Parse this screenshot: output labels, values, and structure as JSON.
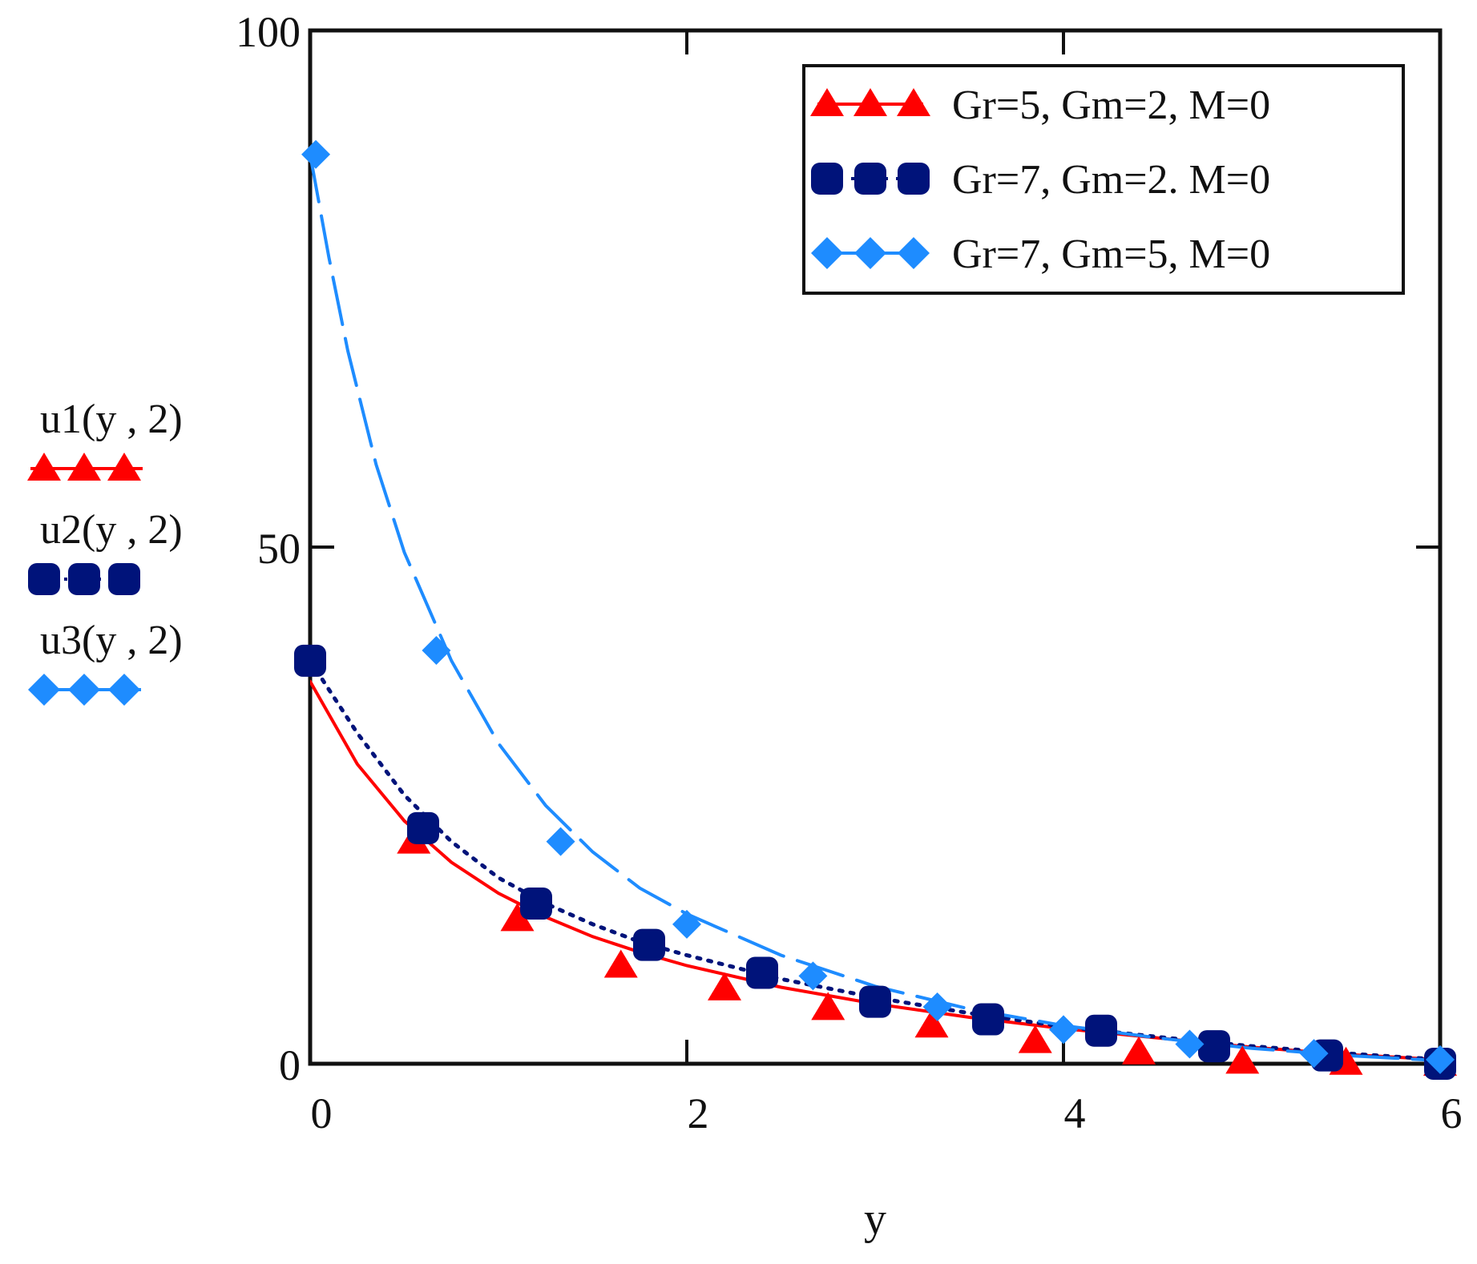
{
  "chart_data": {
    "type": "line",
    "xlabel": "y",
    "ylabel": "",
    "xlim": [
      0,
      6
    ],
    "ylim": [
      0,
      100
    ],
    "x_ticks": [
      0,
      2,
      4,
      6
    ],
    "y_ticks": [
      0,
      50,
      100
    ],
    "grid": false,
    "legend_position": "top-right",
    "y_axis_series_labels": [
      "u1(y , 2)",
      "u2(y , 2)",
      "u3(y , 2)"
    ],
    "series": [
      {
        "name": "Gr=5, Gm=2, M=0",
        "function_label": "u1(y , 2)",
        "color": "#ff0000",
        "marker": "triangle",
        "line_style": "solid",
        "x": [
          0,
          0.25,
          0.5,
          0.75,
          1.0,
          1.25,
          1.5,
          1.75,
          2.0,
          2.5,
          3.0,
          3.5,
          4.0,
          4.5,
          5.0,
          5.5,
          6.0
        ],
        "y": [
          37,
          29,
          23.5,
          19.5,
          16.5,
          14.2,
          12.3,
          10.8,
          9.5,
          7.4,
          5.8,
          4.5,
          3.4,
          2.5,
          1.6,
          0.9,
          0.4
        ],
        "marker_x": [
          0.55,
          1.1,
          1.65,
          2.2,
          2.75,
          3.3,
          3.85,
          4.4,
          4.95,
          5.5,
          6.0
        ],
        "marker_y": [
          21.5,
          14,
          9.5,
          7.3,
          5.4,
          3.7,
          2.2,
          1.1,
          0.2,
          0.1,
          0
        ]
      },
      {
        "name": "Gr=7, Gm=2. M=0",
        "function_label": "u2(y , 2)",
        "color": "#00137a",
        "marker": "rounded-square",
        "line_style": "dotted",
        "x": [
          0,
          0.25,
          0.5,
          0.75,
          1.0,
          1.25,
          1.5,
          1.75,
          2.0,
          2.5,
          3.0,
          3.5,
          4.0,
          4.5,
          5.0,
          5.5,
          6.0
        ],
        "y": [
          39,
          32,
          26,
          21.5,
          18,
          15.5,
          13.5,
          11.8,
          10.5,
          8.2,
          6.4,
          4.9,
          3.6,
          2.6,
          1.7,
          1.0,
          0.4
        ],
        "marker_x": [
          0,
          0.6,
          1.2,
          1.8,
          2.4,
          3.0,
          3.6,
          4.2,
          4.8,
          5.4,
          6.0
        ],
        "marker_y": [
          39,
          22.8,
          15.5,
          11.5,
          8.8,
          6,
          4.3,
          3.2,
          1.7,
          0.8,
          0
        ]
      },
      {
        "name": "Gr=7, Gm=5, M=0",
        "function_label": "u3(y , 2)",
        "color": "#1e8cff",
        "marker": "diamond",
        "line_style": "dashed",
        "x": [
          0,
          0.1,
          0.2,
          0.35,
          0.5,
          0.75,
          1.0,
          1.25,
          1.5,
          1.75,
          2.0,
          2.5,
          3.0,
          3.5,
          4.0,
          4.5,
          5.0,
          5.5,
          6.0
        ],
        "y": [
          88,
          78,
          69,
          58,
          49.5,
          39,
          31,
          25,
          20.5,
          17,
          14.5,
          10.5,
          7.5,
          5.3,
          3.7,
          2.5,
          1.5,
          0.8,
          0.3
        ],
        "marker_x": [
          0.03,
          0.67,
          1.33,
          2.0,
          2.67,
          3.33,
          4.0,
          4.67,
          5.33,
          6.0
        ],
        "marker_y": [
          88,
          40,
          21.5,
          13.5,
          8.5,
          5.5,
          3.3,
          1.9,
          1.0,
          0.4
        ]
      }
    ]
  }
}
